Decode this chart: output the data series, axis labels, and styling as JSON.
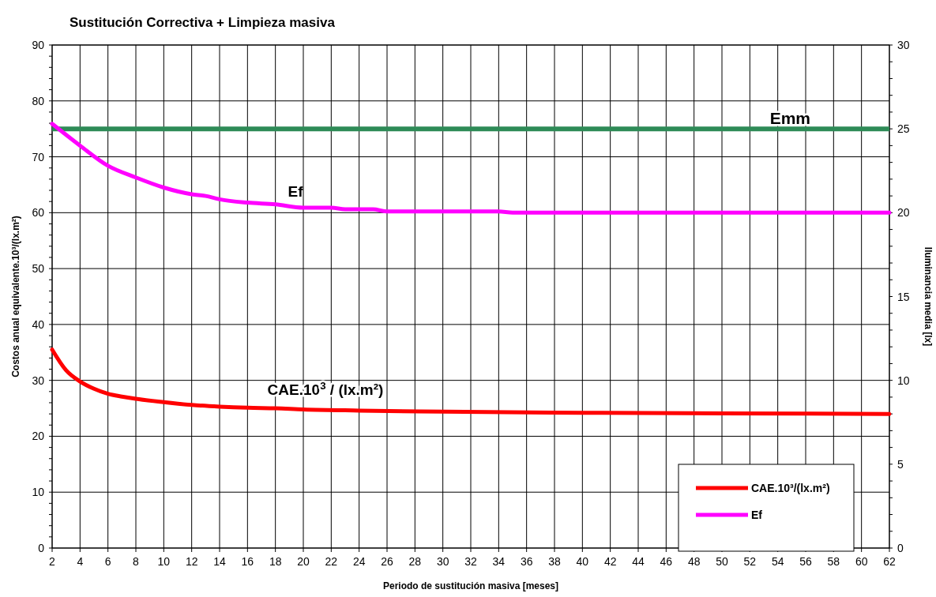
{
  "chart_data": {
    "type": "line",
    "title": "Sustitución Correctiva + Limpieza masiva",
    "xlabel": "Periodo de sustitución masiva [meses]",
    "ylabel": "Costos anual equivalente.10³/(lx.m²)",
    "y2label": "Iluminancia media [lx]",
    "xlim": [
      2,
      62
    ],
    "xticks": [
      2,
      4,
      6,
      8,
      10,
      12,
      14,
      16,
      18,
      20,
      22,
      24,
      26,
      28,
      30,
      32,
      34,
      36,
      38,
      40,
      42,
      44,
      46,
      48,
      50,
      52,
      54,
      56,
      58,
      60,
      62
    ],
    "ylim": [
      0,
      90
    ],
    "yticks": [
      0,
      10,
      20,
      30,
      40,
      50,
      60,
      70,
      80,
      90
    ],
    "y2lim": [
      0,
      30
    ],
    "y2ticks": [
      0,
      5,
      10,
      15,
      20,
      25,
      30
    ],
    "grid": true,
    "legend": "bottom right",
    "marker": "none",
    "line_style": "solid",
    "series": [
      {
        "name": "CAE.10³/(lx.m²)",
        "color": "#ff0000",
        "x": [
          2,
          3,
          4,
          5,
          6,
          7,
          8,
          10,
          12,
          14,
          16,
          18,
          20,
          24,
          30,
          40,
          50,
          62
        ],
        "values": [
          35.5,
          31.8,
          29.8,
          28.5,
          27.6,
          27.1,
          26.7,
          26.1,
          25.6,
          25.3,
          25.1,
          25.0,
          24.8,
          24.6,
          24.4,
          24.2,
          24.1,
          24.0
        ]
      },
      {
        "name": "Ef",
        "color": "#ff00ff",
        "axis": "y2",
        "x": [
          2,
          4,
          6,
          8,
          10,
          12,
          13,
          14,
          16,
          18,
          20,
          22,
          23,
          25,
          26,
          34,
          35,
          62
        ],
        "values": [
          25.3,
          24.0,
          22.8,
          22.1,
          21.5,
          21.1,
          21.0,
          20.8,
          20.6,
          20.5,
          20.3,
          20.3,
          20.2,
          20.2,
          20.07,
          20.07,
          20.0,
          20.0
        ]
      }
    ],
    "ref_lines": [
      {
        "axis": "y2",
        "value": 25,
        "label": "Emm",
        "color": "#2e8b57"
      }
    ],
    "annotations": [
      "CAE.10$^{3}$ / (lx.m²)"
    ]
  }
}
